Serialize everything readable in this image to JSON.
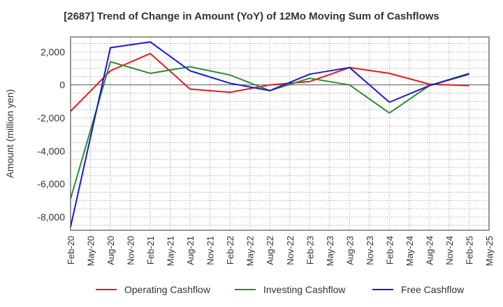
{
  "chart_data": {
    "type": "line",
    "title": "[2687]  Trend of Change in Amount (YoY) of 12Mo Moving Sum of Cashflows",
    "xlabel": "",
    "ylabel": "Amount (million yen)",
    "ylim": [
      -8800,
      2900
    ],
    "yticks": [
      2000,
      0,
      -2000,
      -4000,
      -6000,
      -8000
    ],
    "ytick_labels": [
      "2,000",
      "0",
      "-2,000",
      "-4,000",
      "-6,000",
      "-8,000"
    ],
    "categories": [
      "Feb-20",
      "May-20",
      "Aug-20",
      "Nov-20",
      "Feb-21",
      "May-21",
      "Aug-21",
      "Nov-21",
      "Feb-22",
      "May-22",
      "Aug-22",
      "Nov-22",
      "Feb-23",
      "May-23",
      "Aug-23",
      "Nov-23",
      "Feb-24",
      "May-24",
      "Aug-24",
      "Nov-24",
      "Feb-25",
      "May-25"
    ],
    "grid": true,
    "legend_position": "bottom",
    "series": [
      {
        "name": "Operating Cashflow",
        "color": "#e41a1c",
        "x": [
          0,
          2,
          4,
          6,
          8,
          10,
          12,
          14,
          16,
          18,
          20
        ],
        "values": [
          -1600,
          850,
          1900,
          -250,
          -450,
          0,
          200,
          1050,
          700,
          50,
          -50
        ]
      },
      {
        "name": "Investing Cashflow",
        "color": "#2e8b2e",
        "x": [
          0,
          2,
          4,
          6,
          8,
          10,
          12,
          14,
          16,
          18,
          20
        ],
        "values": [
          -6900,
          1400,
          700,
          1100,
          600,
          -350,
          400,
          0,
          -1700,
          -50,
          700
        ]
      },
      {
        "name": "Free Cashflow",
        "color": "#1a1acd",
        "x": [
          0,
          2,
          4,
          6,
          8,
          10,
          12,
          14,
          16,
          18,
          20
        ],
        "values": [
          -8600,
          2250,
          2600,
          850,
          100,
          -350,
          650,
          1050,
          -1050,
          -50,
          650
        ]
      }
    ]
  }
}
